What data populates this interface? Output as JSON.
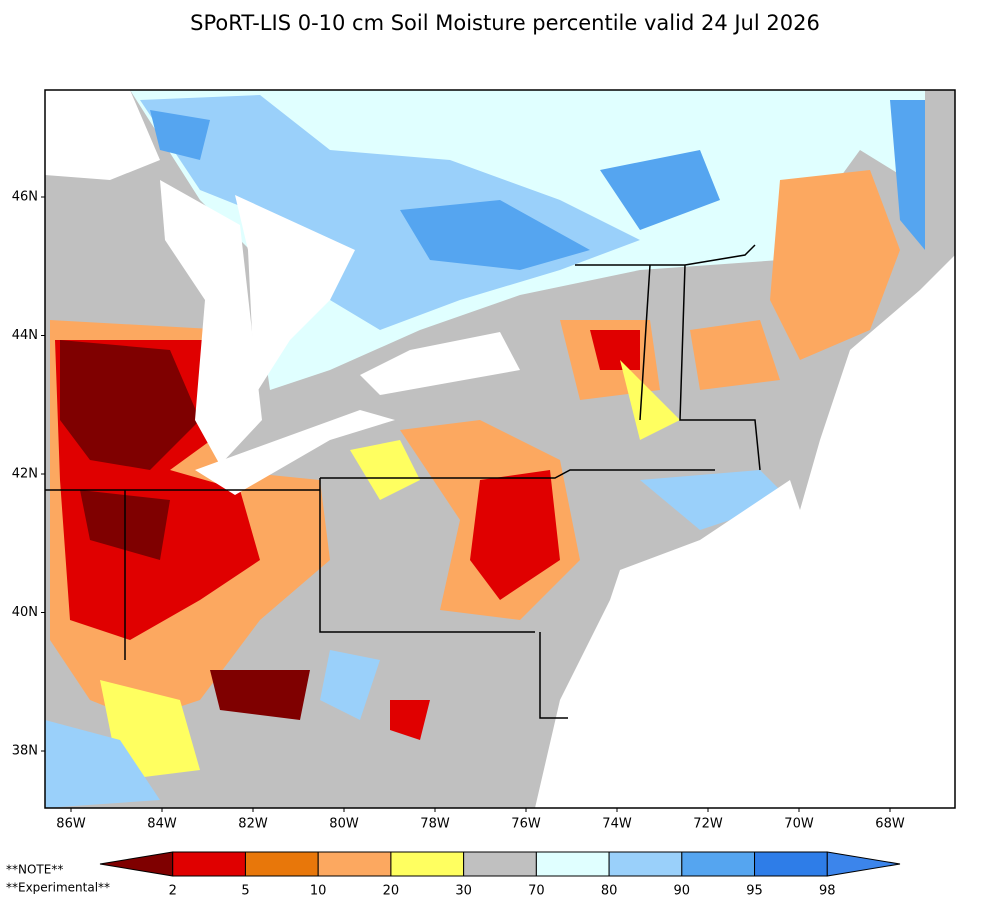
{
  "title": "SPoRT-LIS 0-10 cm Soil Moisture percentile valid 24 Jul 2026",
  "lat_labels": [
    "46N",
    "44N",
    "42N",
    "40N",
    "38N"
  ],
  "lon_labels": [
    "86W",
    "84W",
    "82W",
    "80W",
    "78W",
    "76W",
    "74W",
    "72W",
    "70W",
    "68W"
  ],
  "colorbar": {
    "colors": [
      "#7f0000",
      "#e00000",
      "#e8770a",
      "#fca860",
      "#ffff60",
      "#c0c0c0",
      "#e0ffff",
      "#9ad0fa",
      "#55a5f0",
      "#2e7de8",
      "#3c85eb"
    ],
    "labels": [
      "2",
      "5",
      "10",
      "20",
      "30",
      "70",
      "80",
      "90",
      "95",
      "98"
    ]
  },
  "notes": [
    "**NOTE**",
    "**Experimental**"
  ]
}
